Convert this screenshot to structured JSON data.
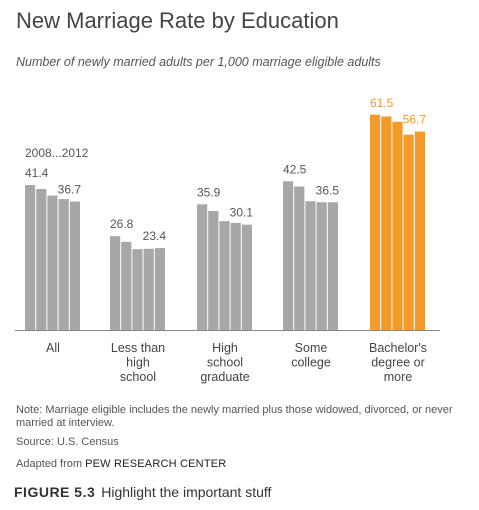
{
  "title": "New Marriage Rate by Education",
  "subtitle": "Number of newly married adults per 1,000 marriage eligible adults",
  "note": "Note: Marriage eligible includes the newly married plus those widowed, divorced, or never married at interview.",
  "source": "Source: U.S. Census",
  "adapted_prefix": "Adapted from",
  "adapted_brand": "PEW RESEARCH CENTER",
  "caption_label": "FIGURE 5.3",
  "caption_text": "Highlight the important stuff",
  "colors": {
    "bar": "#a8a6a6",
    "highlight": "#f39a2b",
    "axis": "#888888"
  },
  "chart_data": {
    "type": "bar",
    "title": "New Marriage Rate by Education",
    "subtitle": "Number of newly married adults per 1,000 marriage eligible adults",
    "years": [
      "2008",
      "2009",
      "2010",
      "2011",
      "2012"
    ],
    "year_range_label": "2008...2012",
    "ylim": [
      0,
      70
    ],
    "grid": false,
    "highlight_group": 4,
    "groups": [
      {
        "lines": [
          "All"
        ],
        "values": [
          41.4,
          40.3,
          38.4,
          37.4,
          36.7
        ]
      },
      {
        "lines": [
          "Less than",
          "high",
          "school"
        ],
        "values": [
          26.8,
          25.2,
          23.1,
          23.2,
          23.4
        ]
      },
      {
        "lines": [
          "High",
          "school",
          "graduate"
        ],
        "values": [
          35.9,
          34.0,
          31.1,
          30.6,
          30.1
        ]
      },
      {
        "lines": [
          "Some",
          "college"
        ],
        "values": [
          42.5,
          41.0,
          36.8,
          36.5,
          36.5
        ]
      },
      {
        "lines": [
          "Bachelor's",
          "degree or",
          "more"
        ],
        "values": [
          61.5,
          61.0,
          59.5,
          55.8,
          56.7
        ]
      }
    ]
  }
}
